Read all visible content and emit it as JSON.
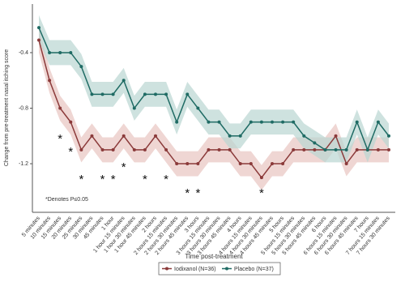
{
  "chart_data": {
    "type": "line",
    "y_label": "Change from pre-treatment nasal itching score",
    "x_label": "Time post-treatment",
    "categories": [
      "5 minutes",
      "10 minutes",
      "15 minutes",
      "20 minutes",
      "25 minutes",
      "30 minutes",
      "45 minutes",
      "1 hour",
      "1 hour 15 minutes",
      "1 hour 30 minutes",
      "1 hour 45 minutes",
      "2 hours",
      "2 hours 15 minutes",
      "2 hours 30 minutes",
      "2 hours 45 minutes",
      "3 hours",
      "3 hours 15 minutes",
      "3 hours 30 minutes",
      "3 hours 45 minutes",
      "4 hours",
      "4 hours 15 minutes",
      "4 hours 30 minutes",
      "4 hours 45 minutes",
      "5 hours",
      "5 hours 15 minutes",
      "5 hours 30 minutes",
      "5 hours 45 minutes",
      "6 hours",
      "6 hours 15 minutes",
      "6 hours 30 minutes",
      "6 hours 45 minutes",
      "7 hours",
      "7 hours 15 minutes",
      "7 hours 30 minutes"
    ],
    "series": [
      {
        "name": "Iodixanol (N=36)",
        "color": "#8b3a3a",
        "band_color": "#e8c4c0",
        "ci_halfwidth": 0.09,
        "values": [
          -0.31,
          -0.6,
          -0.8,
          -0.9,
          -1.1,
          -1.0,
          -1.1,
          -1.1,
          -1.0,
          -1.1,
          -1.1,
          -1.0,
          -1.1,
          -1.2,
          -1.2,
          -1.2,
          -1.1,
          -1.1,
          -1.1,
          -1.2,
          -1.2,
          -1.3,
          -1.2,
          -1.2,
          -1.1,
          -1.1,
          -1.1,
          -1.1,
          -1.0,
          -1.2,
          -1.1,
          -1.1,
          -1.1,
          -1.1
        ]
      },
      {
        "name": "Placebo (N=37)",
        "color": "#1f6b64",
        "band_color": "#b9d6d2",
        "ci_halfwidth": 0.09,
        "values": [
          -0.22,
          -0.4,
          -0.4,
          -0.4,
          -0.5,
          -0.7,
          -0.7,
          -0.7,
          -0.6,
          -0.8,
          -0.7,
          -0.7,
          -0.7,
          -0.9,
          -0.7,
          -0.8,
          -0.9,
          -0.9,
          -1.0,
          -1.0,
          -0.9,
          -0.9,
          -0.9,
          -0.9,
          -0.9,
          -1.0,
          -1.05,
          -1.1,
          -1.1,
          -1.1,
          -0.9,
          -1.1,
          -0.9,
          -1.0
        ]
      }
    ],
    "ylim": [
      -1.55,
      -0.05
    ],
    "yticks": [
      -0.4,
      -0.8,
      -1.2
    ],
    "significance": {
      "marker": "*",
      "note": "*Denotes P≤0.05",
      "categories": [
        "15 minutes",
        "20 minutes",
        "25 minutes",
        "45 minutes",
        "1 hour",
        "1 hour 15 minutes",
        "1 hour 45 minutes",
        "2 hours 15 minutes",
        "2 hours 45 minutes",
        "3 hours",
        "4 hours 30 minutes"
      ]
    },
    "legend": "bottom"
  }
}
